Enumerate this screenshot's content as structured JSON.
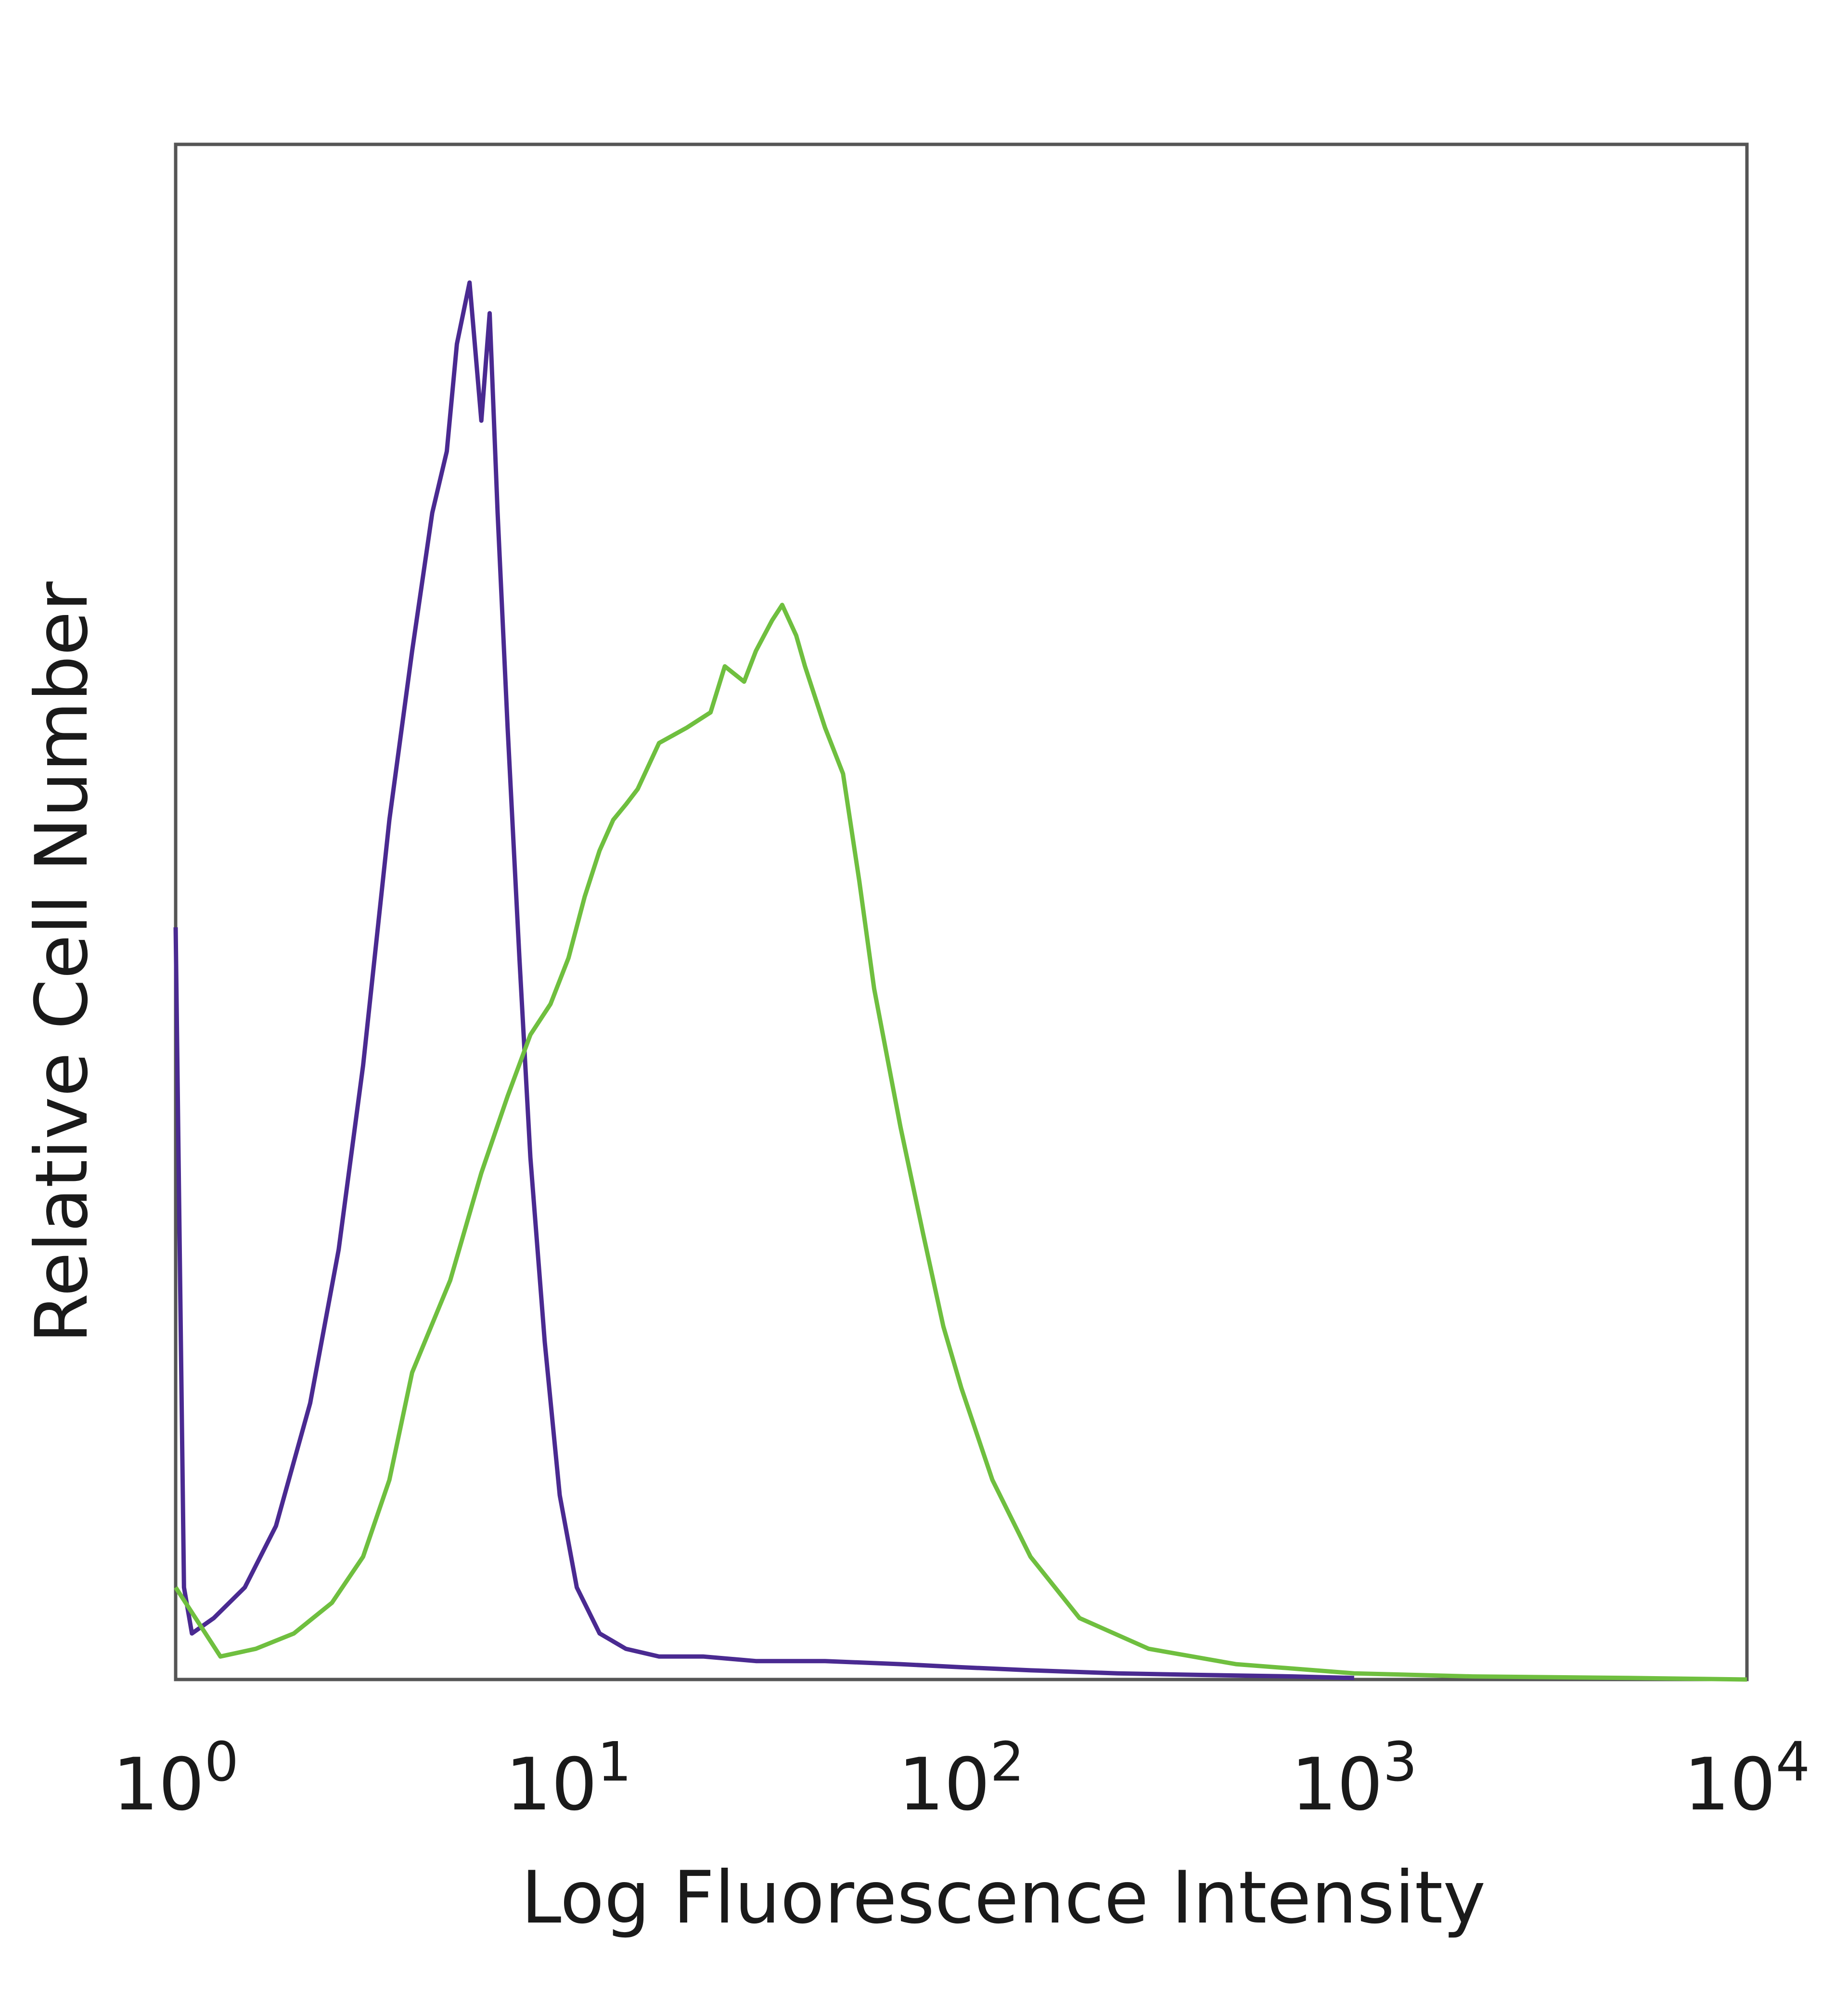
{
  "chart_data": {
    "type": "line",
    "title": "",
    "xlabel": "Log Fluorescence Intensity",
    "ylabel": "Relative Cell Number",
    "x_scale": "log",
    "xlim": [
      1,
      10000
    ],
    "ylim": [
      0,
      1
    ],
    "grid": false,
    "legend": "none",
    "x_ticks": [
      {
        "value": 1,
        "base": "10",
        "exp": "0"
      },
      {
        "value": 10,
        "base": "10",
        "exp": "1"
      },
      {
        "value": 100,
        "base": "10",
        "exp": "2"
      },
      {
        "value": 1000,
        "base": "10",
        "exp": "3"
      },
      {
        "value": 10000,
        "base": "10",
        "exp": "4"
      }
    ],
    "series": [
      {
        "color": "#4a2a91",
        "x": [
          1,
          1.05,
          1.1,
          1.25,
          1.5,
          1.8,
          2.2,
          2.6,
          3.0,
          3.5,
          4.0,
          4.5,
          4.9,
          5.2,
          5.6,
          6.0,
          6.3,
          6.6,
          7.0,
          7.5,
          8.0,
          8.7,
          9.5,
          10.5,
          12,
          14,
          17,
          22,
          30,
          45,
          70,
          100,
          150,
          250,
          400,
          700,
          1000
        ],
        "y": [
          0.49,
          0.06,
          0.03,
          0.04,
          0.06,
          0.1,
          0.18,
          0.28,
          0.4,
          0.56,
          0.67,
          0.76,
          0.8,
          0.87,
          0.91,
          0.82,
          0.89,
          0.76,
          0.62,
          0.47,
          0.34,
          0.22,
          0.12,
          0.06,
          0.03,
          0.02,
          0.015,
          0.015,
          0.012,
          0.012,
          0.01,
          0.008,
          0.006,
          0.004,
          0.003,
          0.002,
          0.001
        ]
      },
      {
        "color": "#6fbf3f",
        "x": [
          1,
          1.3,
          1.6,
          2.0,
          2.5,
          3.0,
          3.5,
          4.0,
          5.0,
          6.0,
          7.0,
          8.0,
          9.0,
          10.0,
          11.0,
          12.0,
          13.0,
          14.0,
          15.0,
          17.0,
          20.0,
          23.0,
          25.0,
          28.0,
          30.0,
          33.0,
          35.0,
          38.0,
          40.0,
          45.0,
          50.0,
          55.0,
          60.0,
          70.0,
          80.0,
          90.0,
          100,
          120,
          150,
          200,
          300,
          500,
          1000,
          2000,
          5000,
          10000
        ],
        "y": [
          0.06,
          0.015,
          0.02,
          0.03,
          0.05,
          0.08,
          0.13,
          0.2,
          0.26,
          0.33,
          0.38,
          0.42,
          0.44,
          0.47,
          0.51,
          0.54,
          0.56,
          0.57,
          0.58,
          0.61,
          0.62,
          0.63,
          0.66,
          0.65,
          0.67,
          0.69,
          0.7,
          0.68,
          0.66,
          0.62,
          0.59,
          0.52,
          0.45,
          0.36,
          0.29,
          0.23,
          0.19,
          0.13,
          0.08,
          0.04,
          0.02,
          0.01,
          0.004,
          0.002,
          0.001,
          0.0
        ]
      }
    ]
  }
}
